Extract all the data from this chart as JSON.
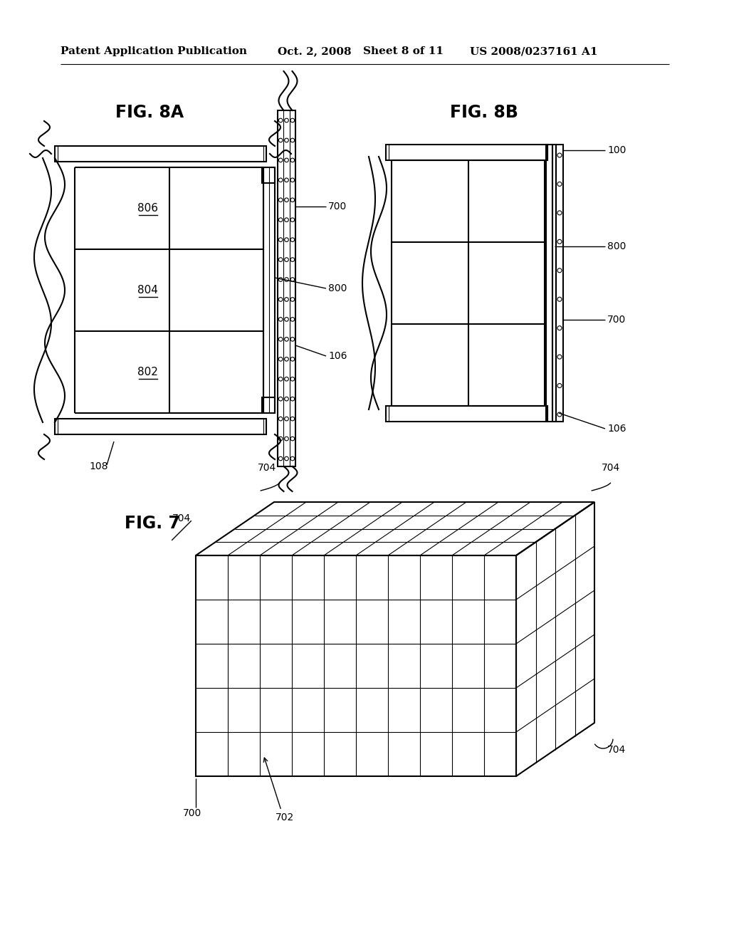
{
  "bg_color": "#ffffff",
  "header_text": "Patent Application Publication",
  "header_date": "Oct. 2, 2008",
  "header_sheet": "Sheet 8 of 11",
  "header_patent": "US 2008/0237161 A1",
  "fig8a_title": "FIG. 8A",
  "fig8b_title": "FIG. 8B",
  "fig7_title": "FIG. 7",
  "line_color": "#000000",
  "line_width": 1.5,
  "thin_line": 0.8
}
